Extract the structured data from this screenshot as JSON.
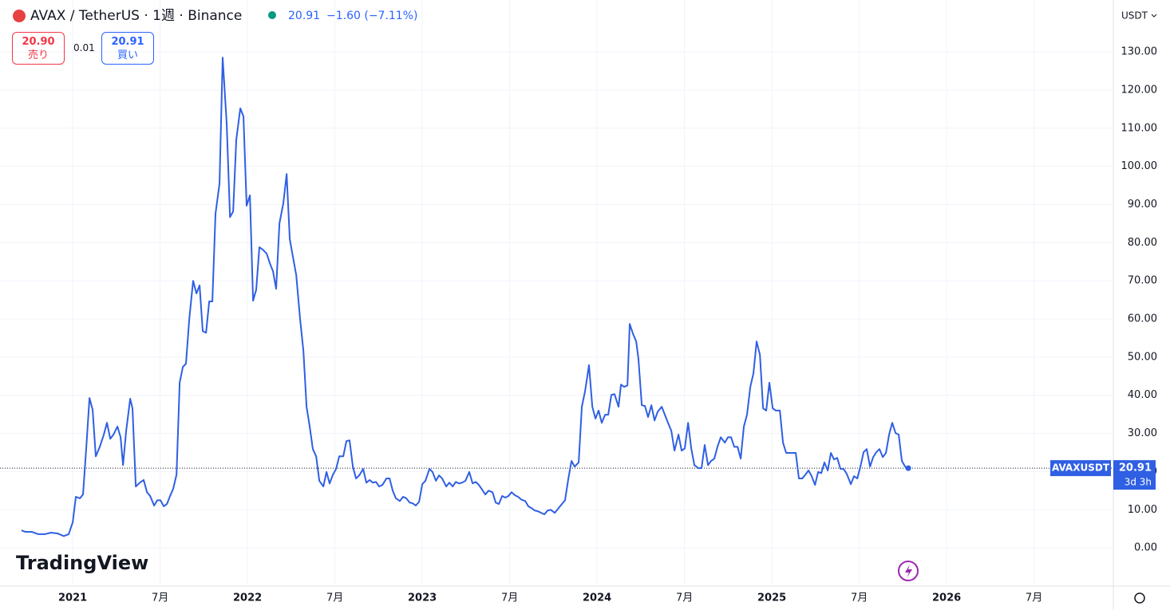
{
  "header": {
    "change": "−1.60 (−7.11%)",
    "sell_price": "20.90",
    "sell_label": "売り",
    "spread": "0.01",
    "buy_price": "20.91",
    "buy_label": "買い",
    "currency": "USDT",
    "countdown": "3d 3h",
    "watermark": "TradingView"
  },
  "chart_data": {
    "type": "line",
    "title": "AVAX / TetherUS · 1週 · Binance",
    "last_price": 20.91,
    "xlim": [
      2020.584,
      2026.954
    ],
    "ylim": [
      -10,
      143.6
    ],
    "grid": true,
    "xticks": [
      {
        "value": 2021,
        "label": "2021"
      },
      {
        "value": 2021.5,
        "label": "7月"
      },
      {
        "value": 2022,
        "label": "2022"
      },
      {
        "value": 2022.5,
        "label": "7月"
      },
      {
        "value": 2023,
        "label": "2023"
      },
      {
        "value": 2023.5,
        "label": "7月"
      },
      {
        "value": 2024,
        "label": "2024"
      },
      {
        "value": 2024.5,
        "label": "7月"
      },
      {
        "value": 2025,
        "label": "2025"
      },
      {
        "value": 2025.5,
        "label": "7月"
      },
      {
        "value": 2026,
        "label": "2026"
      },
      {
        "value": 2026.5,
        "label": "7月"
      }
    ],
    "yticks": [
      {
        "value": 0,
        "label": "0.00"
      },
      {
        "value": 10,
        "label": "10.00"
      },
      {
        "value": 20,
        "label": "20.00"
      },
      {
        "value": 30,
        "label": "30.00"
      },
      {
        "value": 40,
        "label": "40.00"
      },
      {
        "value": 50,
        "label": "50.00"
      },
      {
        "value": 60,
        "label": "60.00"
      },
      {
        "value": 70,
        "label": "70.00"
      },
      {
        "value": 80,
        "label": "80.00"
      },
      {
        "value": 90,
        "label": "90.00"
      },
      {
        "value": 100,
        "label": "100.00"
      },
      {
        "value": 110,
        "label": "110.00"
      },
      {
        "value": 120,
        "label": "120.00"
      },
      {
        "value": 130,
        "label": "130.00"
      }
    ],
    "x": [
      2020.707,
      2020.73,
      2020.767,
      2020.803,
      2020.84,
      2020.876,
      2020.913,
      2020.949,
      2020.977,
      2021.0,
      2021.018,
      2021.041,
      2021.059,
      2021.078,
      2021.096,
      2021.114,
      2021.132,
      2021.155,
      2021.178,
      2021.196,
      2021.215,
      2021.233,
      2021.256,
      2021.274,
      2021.288,
      2021.306,
      2021.329,
      2021.342,
      2021.361,
      2021.384,
      2021.406,
      2021.425,
      2021.443,
      2021.466,
      2021.484,
      2021.502,
      2021.521,
      2021.539,
      2021.557,
      2021.575,
      2021.594,
      2021.612,
      2021.63,
      2021.648,
      2021.667,
      2021.689,
      2021.708,
      2021.726,
      2021.744,
      2021.763,
      2021.781,
      2021.799,
      2021.817,
      2021.84,
      2021.858,
      2021.881,
      2021.9,
      2021.918,
      2021.936,
      2021.959,
      2021.977,
      2021.995,
      2022.014,
      2022.032,
      2022.05,
      2022.068,
      2022.087,
      2022.11,
      2022.128,
      2022.146,
      2022.164,
      2022.183,
      2022.205,
      2022.224,
      2022.242,
      2022.26,
      2022.279,
      2022.301,
      2022.32,
      2022.338,
      2022.356,
      2022.374,
      2022.393,
      2022.411,
      2022.434,
      2022.452,
      2022.47,
      2022.489,
      2022.507,
      2022.525,
      2022.548,
      2022.566,
      2022.584,
      2022.603,
      2022.621,
      2022.639,
      2022.662,
      2022.68,
      2022.699,
      2022.717,
      2022.735,
      2022.753,
      2022.772,
      2022.795,
      2022.813,
      2022.831,
      2022.849,
      2022.872,
      2022.89,
      2022.909,
      2022.927,
      2022.945,
      2022.963,
      2022.982,
      2023.0,
      2023.018,
      2023.041,
      2023.059,
      2023.078,
      2023.096,
      2023.114,
      2023.137,
      2023.155,
      2023.174,
      2023.192,
      2023.21,
      2023.228,
      2023.247,
      2023.269,
      2023.288,
      2023.306,
      2023.324,
      2023.342,
      2023.361,
      2023.379,
      2023.402,
      2023.42,
      2023.438,
      2023.457,
      2023.475,
      2023.493,
      2023.511,
      2023.53,
      2023.548,
      2023.566,
      2023.589,
      2023.607,
      2023.626,
      2023.644,
      2023.662,
      2023.68,
      2023.699,
      2023.717,
      2023.735,
      2023.758,
      2023.776,
      2023.795,
      2023.817,
      2023.836,
      2023.854,
      2023.872,
      2023.895,
      2023.913,
      2023.932,
      2023.954,
      2023.973,
      2023.991,
      2024.009,
      2024.027,
      2024.046,
      2024.064,
      2024.082,
      2024.1,
      2024.123,
      2024.137,
      2024.155,
      2024.174,
      2024.187,
      2024.205,
      2024.224,
      2024.237,
      2024.256,
      2024.274,
      2024.292,
      2024.311,
      2024.329,
      2024.347,
      2024.37,
      2024.388,
      2024.406,
      2024.425,
      2024.443,
      2024.466,
      2024.484,
      2024.502,
      2024.521,
      2024.539,
      2024.557,
      2024.58,
      2024.598,
      2024.616,
      2024.635,
      2024.653,
      2024.671,
      2024.689,
      2024.708,
      2024.731,
      2024.749,
      2024.767,
      2024.785,
      2024.804,
      2024.822,
      2024.84,
      2024.858,
      2024.877,
      2024.895,
      2024.913,
      2024.932,
      2024.95,
      2024.968,
      2024.986,
      2025.005,
      2025.023,
      2025.046,
      2025.064,
      2025.082,
      2025.1,
      2025.119,
      2025.137,
      2025.155,
      2025.174,
      2025.192,
      2025.21,
      2025.228,
      2025.247,
      2025.265,
      2025.283,
      2025.301,
      2025.32,
      2025.338,
      2025.356,
      2025.374,
      2025.393,
      2025.411,
      2025.429,
      2025.452,
      2025.47,
      2025.489,
      2025.507,
      2025.525,
      2025.543,
      2025.562,
      2025.58,
      2025.598,
      2025.616,
      2025.635,
      2025.653,
      2025.671,
      2025.689,
      2025.708,
      2025.726,
      2025.744,
      2025.763,
      2025.781
    ],
    "series": [
      {
        "name": "AVAXUSDT",
        "color": "#2f5fe3",
        "values": [
          4.6,
          4.2,
          4.2,
          3.6,
          3.6,
          4.0,
          3.8,
          3.1,
          3.6,
          6.7,
          13.4,
          13,
          14,
          26.5,
          39.3,
          36.2,
          24,
          26.5,
          29.7,
          32.8,
          28.6,
          29.7,
          31.8,
          29,
          21.7,
          30.7,
          39.1,
          36.6,
          16.1,
          17.1,
          17.8,
          14.6,
          13.6,
          11.1,
          12.5,
          12.5,
          10.9,
          11.5,
          13.6,
          15.5,
          19.2,
          43.3,
          47.4,
          48.3,
          60,
          70,
          66.7,
          68.8,
          56.8,
          56.4,
          64.6,
          64.6,
          87.6,
          95.5,
          128.5,
          111.2,
          86.7,
          88.2,
          107,
          115.2,
          113.1,
          89.7,
          92.4,
          64.8,
          67.7,
          78.8,
          78.2,
          77.1,
          74.6,
          72.5,
          67.9,
          85.1,
          90.3,
          98,
          80.9,
          76.3,
          71.5,
          60,
          51.6,
          37,
          31.8,
          25.9,
          24,
          17.6,
          16.1,
          19.9,
          16.9,
          19.2,
          20.7,
          24,
          24,
          28,
          28.2,
          21.3,
          18.2,
          19,
          20.7,
          17.1,
          17.8,
          17.1,
          17.3,
          16.1,
          16.5,
          18.2,
          18.2,
          15,
          13,
          12.3,
          13.4,
          13,
          11.9,
          11.7,
          11.1,
          12.1,
          16.7,
          17.6,
          20.7,
          19.9,
          17.6,
          19,
          18.2,
          16.1,
          17.1,
          16.1,
          17.3,
          16.9,
          17.1,
          17.6,
          19.9,
          16.9,
          17.3,
          16.5,
          15.3,
          14,
          15,
          14.6,
          11.9,
          11.5,
          13.6,
          13.2,
          13.6,
          14.6,
          13.8,
          13.4,
          12.7,
          12.3,
          10.9,
          10.4,
          9.8,
          9.6,
          9.2,
          8.8,
          9.8,
          10,
          9.2,
          10.2,
          11.3,
          12.5,
          18.2,
          22.8,
          21.3,
          22.4,
          37,
          41.2,
          47.9,
          37,
          33.9,
          36,
          32.8,
          34.9,
          34.9,
          40.1,
          40.3,
          37,
          42.8,
          42.2,
          42.6,
          58.7,
          56.2,
          54.1,
          49.5,
          37.4,
          37.2,
          34.3,
          37.4,
          33.4,
          35.7,
          37,
          34.9,
          32.8,
          30.7,
          25.5,
          29.7,
          25.5,
          26.1,
          32.8,
          26.1,
          21.7,
          20.9,
          20.9,
          27,
          21.7,
          22.8,
          23.4,
          26.5,
          29,
          27.6,
          29,
          29,
          26.5,
          26.5,
          23.4,
          31.8,
          34.9,
          42.2,
          45.8,
          54.1,
          50.6,
          36.6,
          36,
          43.3,
          36.6,
          36,
          36,
          27.6,
          24.9,
          24.9,
          24.9,
          24.9,
          18.2,
          18.2,
          19.2,
          20.3,
          18.8,
          16.5,
          19.9,
          19.6,
          22.4,
          20.3,
          24.9,
          23.2,
          23.6,
          20.7,
          20.7,
          19.4,
          16.7,
          18.8,
          18.2,
          21.3,
          25.1,
          25.9,
          21.3,
          23.8,
          25.1,
          25.9,
          23.8,
          24.9,
          29.7,
          32.8,
          30.1,
          29.7,
          22.8,
          21.3,
          20.91
        ]
      }
    ]
  }
}
